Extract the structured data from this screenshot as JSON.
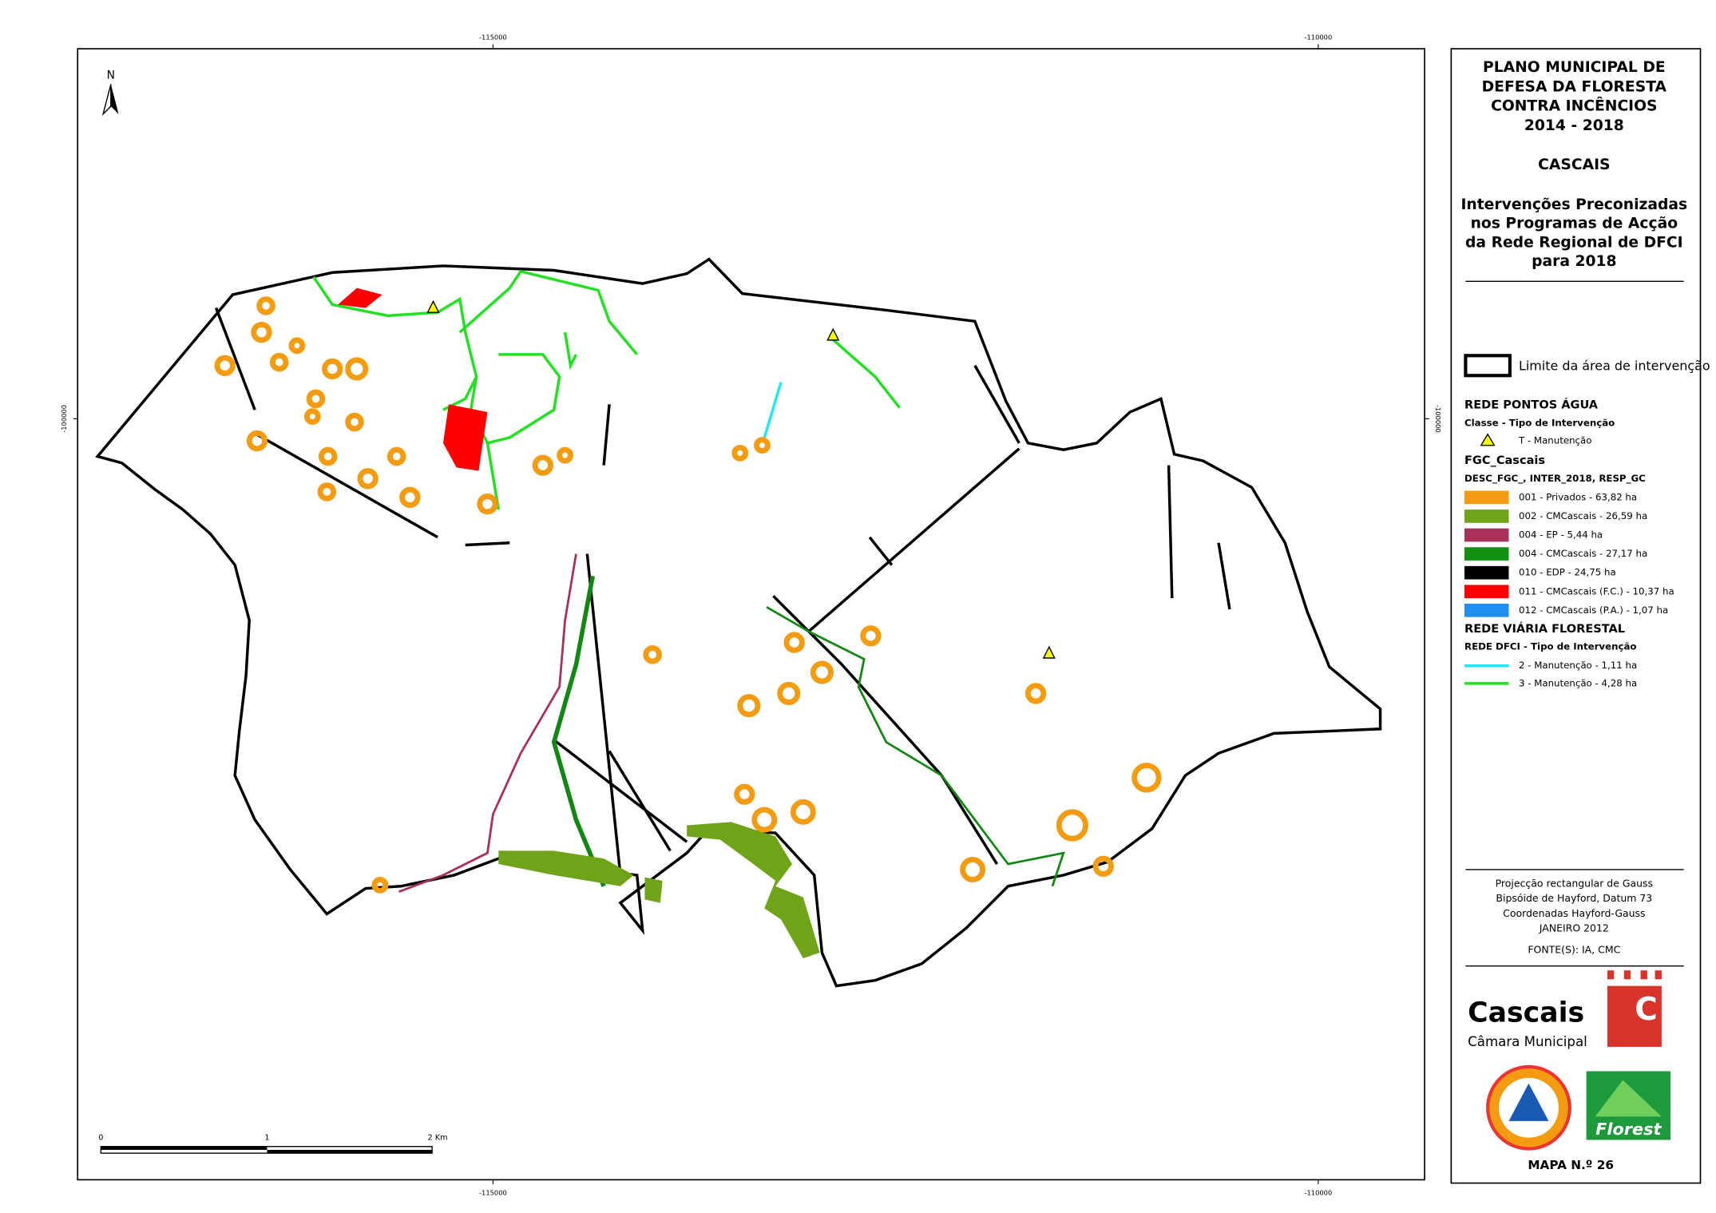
{
  "map": {
    "north": "N",
    "coords_top": [
      "-115000",
      "-110000"
    ],
    "coords_bottom": [
      "-115000",
      "-110000"
    ],
    "coord_left": "-100000",
    "coord_right": "-100000",
    "scale_labels": [
      "0",
      "1",
      "2 Km"
    ]
  },
  "panel": {
    "title": [
      "PLANO MUNICIPAL DE",
      "DEFESA DA FLORESTA",
      "CONTRA INCÊNCIOS",
      "2014 - 2018"
    ],
    "place": "CASCAIS",
    "subtitle": [
      "Intervenções Preconizadas",
      "nos Programas de Acção",
      "da Rede Regional de DFCI",
      "para 2018"
    ],
    "legend": {
      "boundary": "Limite da área de intervenção",
      "water_title": "REDE PONTOS ÁGUA",
      "water_sub": "Classe - Tipo de Intervenção",
      "water_item": "T - Manutenção",
      "fgc_title": "FGC_Cascais",
      "fgc_sub": "DESC_FGC_, INTER_2018, RESP_GC",
      "fgc_items": [
        {
          "label": "001 - Privados - 63,82 ha",
          "color": "#f39c12"
        },
        {
          "label": "002 - CMCascais - 26,59 ha",
          "color": "#6fa318"
        },
        {
          "label": "004 - EP - 5,44 ha",
          "color": "#a8305a"
        },
        {
          "label": "004 - CMCascais - 27,17 ha",
          "color": "#119011"
        },
        {
          "label": "010 - EDP - 24,75 ha",
          "color": "#000000"
        },
        {
          "label": "011 - CMCascais (F.C.) - 10,37 ha",
          "color": "#ff0000"
        },
        {
          "label": "012 - CMCascais (P.A.) - 1,07 ha",
          "color": "#1e8ff0"
        }
      ],
      "road_title": "REDE VIÁRIA FLORESTAL",
      "road_sub": "REDE DFCI - Tipo de Intervenção",
      "road_items": [
        {
          "label": "2 - Manutenção - 1,11 ha",
          "color": "#22e6f0"
        },
        {
          "label": "3 - Manutenção - 4,28 ha",
          "color": "#22e022"
        }
      ]
    },
    "projection": [
      "Projecção rectangular de Gauss",
      "Bipsóide de Hayford, Datum 73",
      "Coordenadas Hayford-Gauss",
      "JANEIRO 2012"
    ],
    "source": "FONTE(S): IA, CMC",
    "logo_cascais": "Cascais",
    "logo_camara": "Câmara Municipal",
    "logo_c": "C",
    "logo_florest": "Florest",
    "map_number": "MAPA N.º 26"
  }
}
